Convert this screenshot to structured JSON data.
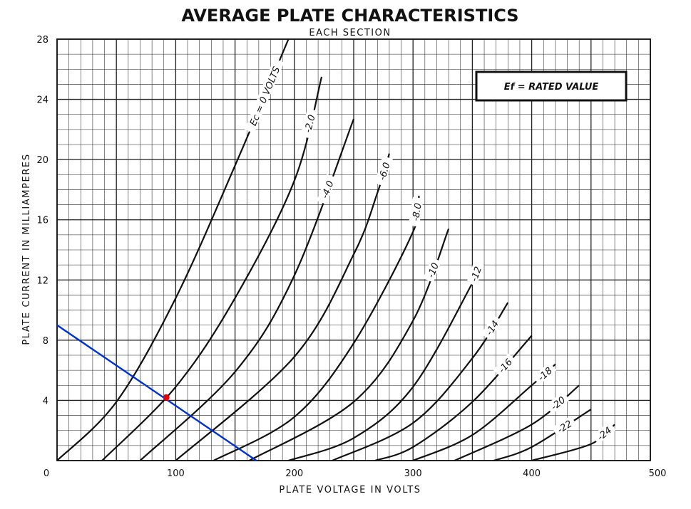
{
  "chart_data": {
    "type": "line",
    "title": "AVERAGE PLATE CHARACTERISTICS",
    "subtitle": "EACH SECTION",
    "xlabel": "PLATE VOLTAGE IN VOLTS",
    "ylabel": "PLATE CURRENT IN MILLIAMPERES",
    "xlim": [
      0,
      500
    ],
    "ylim": [
      0,
      28
    ],
    "x_ticks": [
      0,
      100,
      200,
      300,
      400,
      500
    ],
    "y_ticks": [
      4,
      8,
      12,
      16,
      20,
      24,
      28
    ],
    "x_tick_labels": [
      "0",
      "100",
      "200",
      "300",
      "400",
      "500"
    ],
    "y_tick_labels": [
      "4",
      "8",
      "12",
      "16",
      "20",
      "24",
      "28"
    ],
    "grid": true,
    "minor_grid_x_step": 10,
    "minor_grid_y_step": 1,
    "major_grid_x_step": 50,
    "major_grid_y_step": 4,
    "legend": {
      "text": "Ef = RATED VALUE",
      "position": "top-right"
    },
    "curve_color": "#111111",
    "series": [
      {
        "label": "Ec = 0 VOLTS",
        "points": [
          [
            0,
            0
          ],
          [
            50,
            3.9
          ],
          [
            100,
            10.8
          ],
          [
            150,
            19.6
          ],
          [
            195,
            28
          ]
        ]
      },
      {
        "label": "-2.0",
        "points": [
          [
            38,
            0
          ],
          [
            100,
            4.9
          ],
          [
            150,
            10.8
          ],
          [
            200,
            18.6
          ],
          [
            223,
            25.5
          ]
        ]
      },
      {
        "label": "-4.0",
        "points": [
          [
            70,
            0
          ],
          [
            150,
            5.9
          ],
          [
            200,
            12.3
          ],
          [
            250,
            22.7
          ]
        ]
      },
      {
        "label": "-6.0",
        "points": [
          [
            100,
            0
          ],
          [
            200,
            6.9
          ],
          [
            250,
            13.7
          ],
          [
            270,
            17.8
          ],
          [
            280,
            20.4
          ]
        ]
      },
      {
        "label": "-8.0",
        "points": [
          [
            132,
            0
          ],
          [
            200,
            2.9
          ],
          [
            250,
            7.8
          ],
          [
            300,
            15.2
          ],
          [
            305,
            17.6
          ]
        ]
      },
      {
        "label": "-10",
        "points": [
          [
            162,
            0
          ],
          [
            250,
            3.9
          ],
          [
            300,
            9.3
          ],
          [
            330,
            15.4
          ]
        ]
      },
      {
        "label": "-12",
        "points": [
          [
            195,
            0
          ],
          [
            250,
            1.5
          ],
          [
            300,
            4.9
          ],
          [
            350,
            11.8
          ],
          [
            355,
            12.9
          ]
        ]
      },
      {
        "label": "-14",
        "points": [
          [
            232,
            0
          ],
          [
            300,
            2.5
          ],
          [
            350,
            6.8
          ],
          [
            380,
            10.5
          ]
        ]
      },
      {
        "label": "-16",
        "points": [
          [
            268,
            0
          ],
          [
            300,
            0.9
          ],
          [
            350,
            3.9
          ],
          [
            400,
            8.3
          ]
        ]
      },
      {
        "label": "-18",
        "points": [
          [
            300,
            0
          ],
          [
            350,
            1.7
          ],
          [
            400,
            5.0
          ],
          [
            420,
            6.4
          ]
        ]
      },
      {
        "label": "-20",
        "points": [
          [
            335,
            0
          ],
          [
            400,
            2.4
          ],
          [
            440,
            5.0
          ]
        ]
      },
      {
        "label": "-22",
        "points": [
          [
            368,
            0
          ],
          [
            400,
            0.9
          ],
          [
            450,
            3.4
          ]
        ]
      },
      {
        "label": "-24",
        "points": [
          [
            400,
            0
          ],
          [
            450,
            1.1
          ],
          [
            470,
            2.4
          ]
        ]
      }
    ],
    "load_line": {
      "color": "#0033cc",
      "points": [
        [
          0,
          9.0
        ],
        [
          168,
          0
        ]
      ]
    },
    "operating_point": {
      "color": "#e00000",
      "x": 92,
      "y": 4.2
    },
    "curve_labels": {
      "first_main": "Ec = 0 VOLTS",
      "others": [
        "-2.0",
        "-4.0",
        "-6.0",
        "-8.0",
        "-10",
        "-12",
        "-14",
        "-16",
        "-18",
        "-20",
        "-22",
        "-24"
      ]
    }
  }
}
